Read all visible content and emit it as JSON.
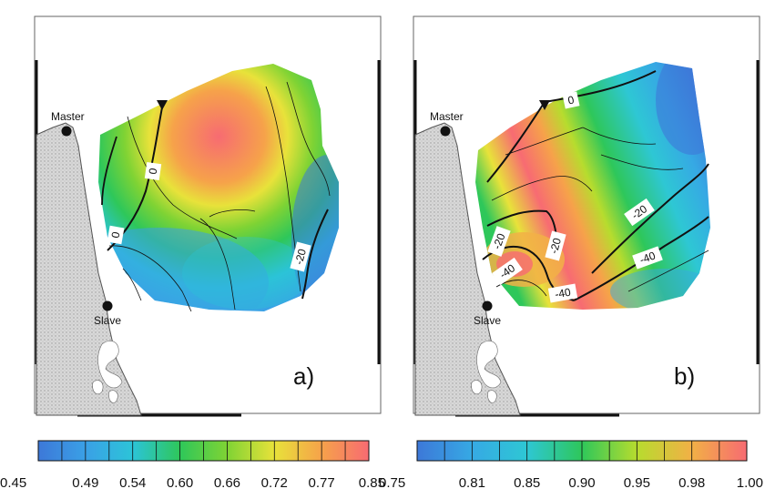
{
  "panels": [
    {
      "id": "a",
      "label": "a)",
      "stations": {
        "master": "Master",
        "slave": "Slave"
      },
      "contour_labels": [
        "0",
        "0",
        "-20"
      ],
      "colorbar": {
        "ticks": [
          "0.45",
          "0.49",
          "0.54",
          "0.60",
          "0.66",
          "0.72",
          "0.77",
          "0.85"
        ],
        "colors": [
          "#3d78d8",
          "#3aa0e6",
          "#2cc4d8",
          "#2ec75a",
          "#7fd334",
          "#e8e23a",
          "#f6a24a",
          "#f76b72"
        ]
      }
    },
    {
      "id": "b",
      "label": "b)",
      "stations": {
        "master": "Master",
        "slave": "Slave"
      },
      "contour_labels": [
        "0",
        "-20",
        "-20",
        "-20",
        "-40",
        "-40",
        "-40"
      ],
      "colorbar": {
        "ticks": [
          "0.75",
          "0.81",
          "0.85",
          "0.90",
          "0.95",
          "0.98",
          "1.00"
        ],
        "colors": [
          "#3d78d8",
          "#36a9e4",
          "#2ec7d4",
          "#2ec75a",
          "#b7dc2e",
          "#f2b046",
          "#f76b72"
        ]
      }
    }
  ]
}
